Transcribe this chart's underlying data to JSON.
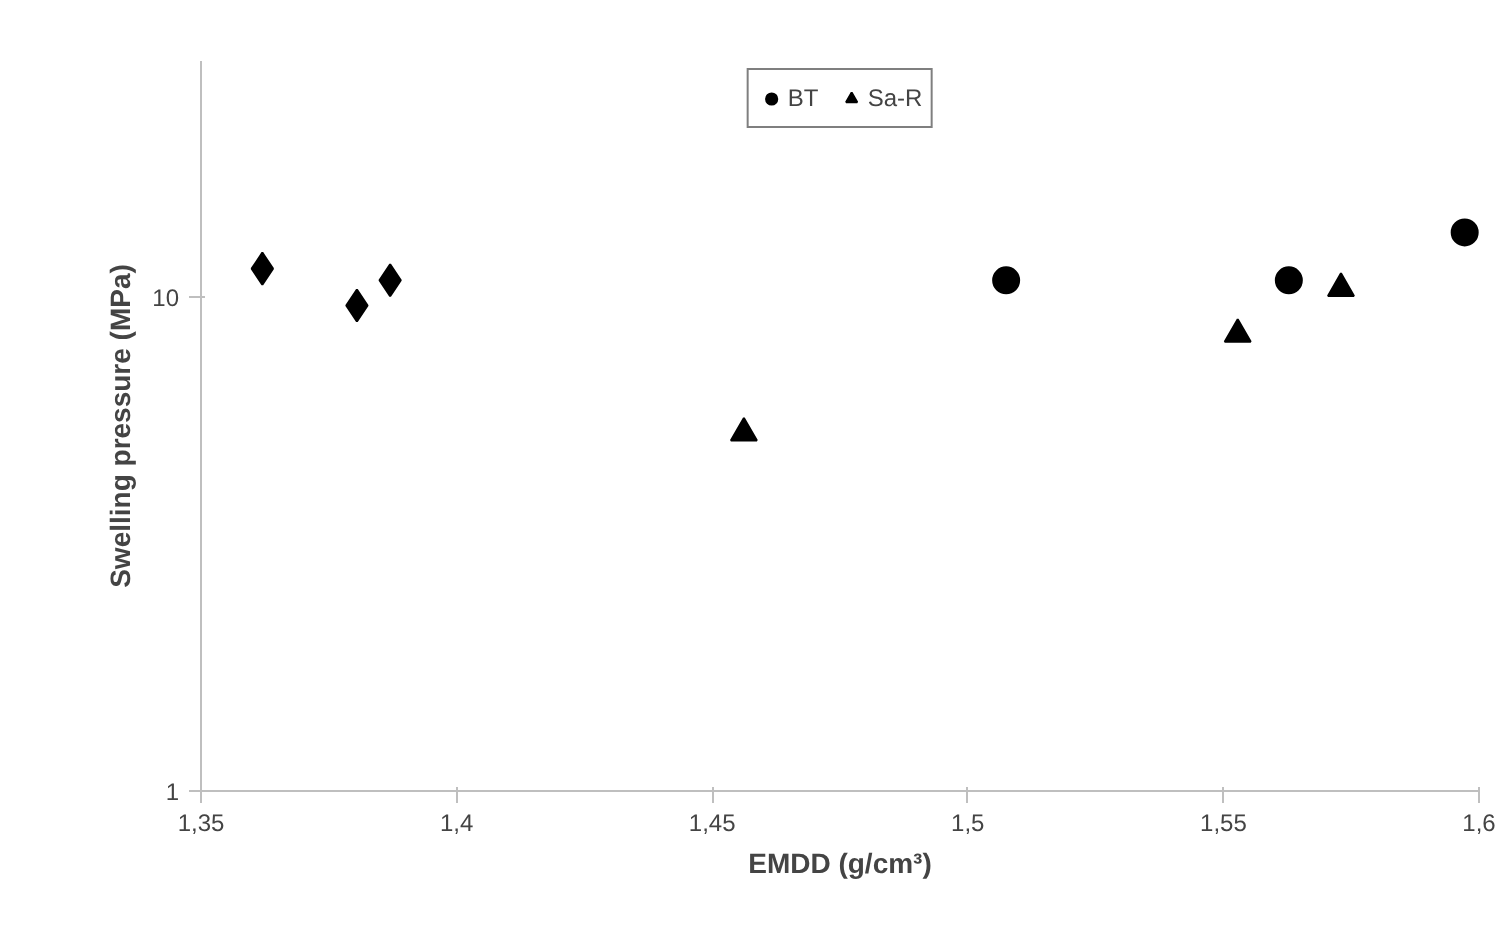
{
  "chart_data": {
    "type": "scatter",
    "xlabel": "EMDD (g/cm³)",
    "ylabel": "Swelling pressure (MPa)",
    "log": "y",
    "grid": false,
    "legend": "top",
    "xlim": [
      1.35,
      1.6
    ],
    "xticks": [
      {
        "value": 1.35,
        "label": "1,35"
      },
      {
        "value": 1.4,
        "label": "1,4"
      },
      {
        "value": 1.45,
        "label": "1,45"
      },
      {
        "value": 1.5,
        "label": "1,5"
      },
      {
        "value": 1.55,
        "label": "1,55"
      },
      {
        "value": 1.6,
        "label": "1,6"
      }
    ],
    "ylim": [
      1,
      30
    ],
    "yticks": [
      1,
      10
    ],
    "series": [
      {
        "marker": "diamond",
        "color": "#000000",
        "x": [
          1.362,
          1.3805,
          1.387
        ],
        "values": [
          11.4,
          9.6,
          10.8
        ]
      },
      {
        "name": "BT",
        "marker": "circle",
        "color": "#000000",
        "x": [
          1.5075,
          1.5628,
          1.5972
        ],
        "values": [
          10.8,
          10.8,
          13.5
        ]
      },
      {
        "name": "Sa-R",
        "marker": "triangle",
        "color": "#000000",
        "x": [
          1.4562,
          1.5528,
          1.573
        ],
        "values": [
          5.3,
          8.4,
          10.4
        ]
      }
    ]
  }
}
